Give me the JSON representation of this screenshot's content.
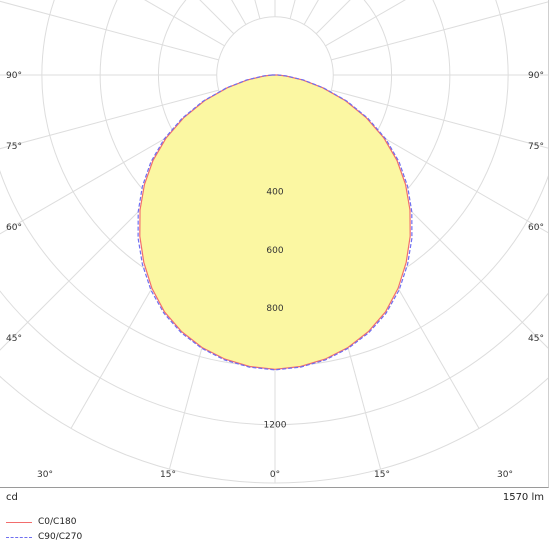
{
  "chart_data": {
    "type": "polar-luminous-intensity",
    "unit": "cd",
    "luminous_flux": "1570 lm",
    "radial_max": 1400,
    "radial_ticks": [
      {
        "value": 400,
        "label": "400"
      },
      {
        "value": 600,
        "label": "600"
      },
      {
        "value": 800,
        "label": "800"
      },
      {
        "value": 1200,
        "label": "1200"
      }
    ],
    "angle_labels": [
      {
        "angle": 90,
        "label": "90°"
      },
      {
        "angle": 75,
        "label": "75°"
      },
      {
        "angle": 60,
        "label": "60°"
      },
      {
        "angle": 45,
        "label": "45°"
      },
      {
        "angle": 30,
        "label": "30°"
      },
      {
        "angle": 15,
        "label": "15°"
      },
      {
        "angle": 0,
        "label": "0°"
      }
    ],
    "series": [
      {
        "name": "C0/C180",
        "color": "#f26d6d",
        "dash": false,
        "angles": [
          0,
          5,
          10,
          15,
          20,
          25,
          30,
          35,
          40,
          45,
          50,
          55,
          60,
          65,
          70,
          75,
          80,
          85,
          90
        ],
        "values": [
          1010,
          1004,
          990,
          968,
          937,
          897,
          845,
          785,
          722,
          655,
          585,
          511,
          431,
          345,
          257,
          169,
          96,
          38,
          10
        ]
      },
      {
        "name": "C90/C270",
        "color": "#6f6ff0",
        "dash": true,
        "angles": [
          0,
          5,
          10,
          15,
          20,
          25,
          30,
          35,
          40,
          45,
          50,
          55,
          60,
          65,
          70,
          75,
          80,
          85,
          90
        ],
        "values": [
          1012,
          1006,
          993,
          971,
          941,
          902,
          852,
          793,
          731,
          664,
          594,
          520,
          439,
          352,
          263,
          173,
          99,
          40,
          10
        ]
      }
    ],
    "fill_color": "#fbf7a2",
    "grid_color": "#dddddd"
  }
}
